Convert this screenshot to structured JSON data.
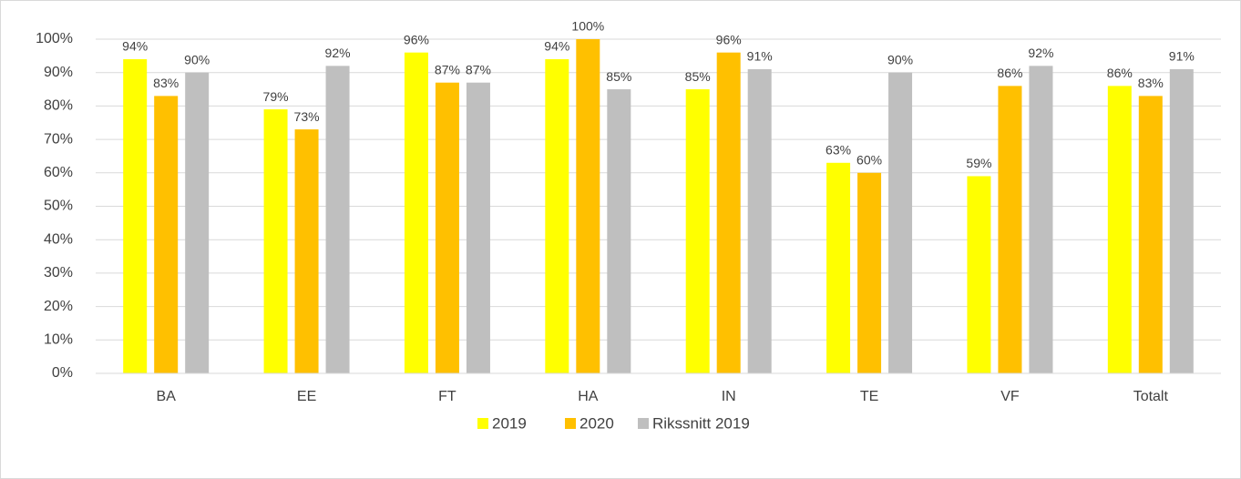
{
  "chart_data": {
    "type": "bar",
    "categories": [
      "BA",
      "EE",
      "FT",
      "HA",
      "IN",
      "TE",
      "VF",
      "Totalt"
    ],
    "series": [
      {
        "name": "2019",
        "color": "#ffff00",
        "values": [
          94,
          79,
          96,
          94,
          85,
          63,
          59,
          86
        ],
        "value_labels": [
          "94%",
          "79%",
          "96%",
          "94%",
          "85%",
          "63%",
          "59%",
          "86%"
        ]
      },
      {
        "name": "2020",
        "color": "#ffc000",
        "values": [
          83,
          73,
          87,
          100,
          96,
          60,
          86,
          83
        ],
        "value_labels": [
          "83%",
          "73%",
          "87%",
          "100%",
          "96%",
          "60%",
          "86%",
          "83%"
        ]
      },
      {
        "name": "Rikssnitt 2019",
        "color": "#bfbfbf",
        "values": [
          90,
          92,
          87,
          85,
          91,
          90,
          92,
          91
        ],
        "value_labels": [
          "90%",
          "92%",
          "87%",
          "85%",
          "91%",
          "90%",
          "92%",
          "91%"
        ]
      }
    ],
    "ylim": [
      0,
      100
    ],
    "yticks": [
      {
        "value": 0,
        "label": "0%"
      },
      {
        "value": 10,
        "label": "10%"
      },
      {
        "value": 20,
        "label": "20%"
      },
      {
        "value": 30,
        "label": "30%"
      },
      {
        "value": 40,
        "label": "40%"
      },
      {
        "value": 50,
        "label": "50%"
      },
      {
        "value": 60,
        "label": "60%"
      },
      {
        "value": 70,
        "label": "70%"
      },
      {
        "value": 80,
        "label": "80%"
      },
      {
        "value": 90,
        "label": "90%"
      },
      {
        "value": 100,
        "label": "100%"
      }
    ],
    "grid": true,
    "legend": "bottom"
  }
}
